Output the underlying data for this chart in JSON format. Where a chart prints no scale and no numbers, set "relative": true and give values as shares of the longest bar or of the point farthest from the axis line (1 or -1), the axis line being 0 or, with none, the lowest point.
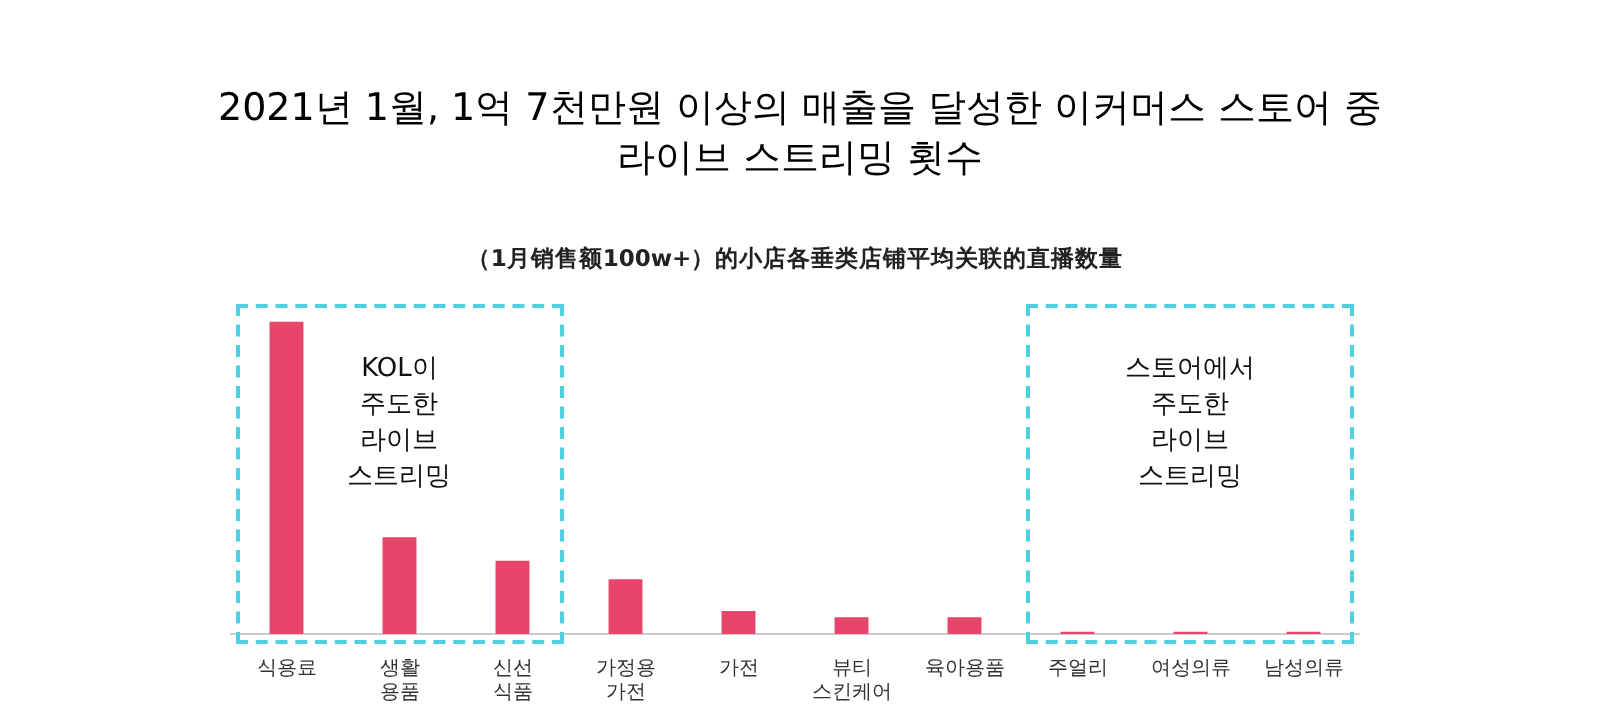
{
  "chart_data": {
    "type": "bar",
    "title": "2021년 1월, 1억 7천만원 이상의 매출을 달성한 이커머스 스토어 중\n라이브 스트리밍 횟수",
    "subtitle": "（1月销售额100w+）的小店各垂类店铺平均关联的直播数量",
    "categories": [
      "식용료",
      "생활\n용품",
      "신선\n식품",
      "가정용\n가전",
      "가전",
      "뷰티\n스킨케어",
      "육아용품",
      "주얼리",
      "여성의류",
      "남성의류"
    ],
    "values": [
      1,
      0.31,
      0.235,
      0.175,
      0.074,
      0.054,
      0.054,
      0.007,
      0.007,
      0.007
    ],
    "color": "#e8456b",
    "relative": true,
    "annotations": [
      "KOL이\n주도한\n라이브\n스트리밍",
      "스토어에서\n주도한\n라이브\n스트리밍"
    ]
  }
}
